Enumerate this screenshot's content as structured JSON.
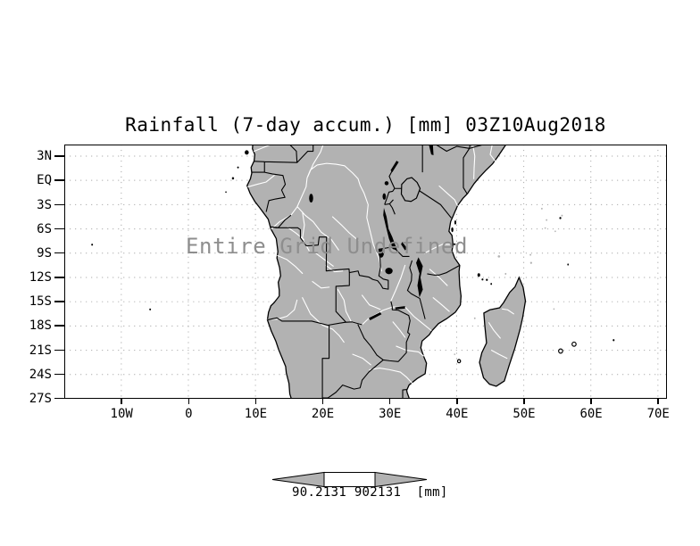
{
  "title": "Rainfall (7-day accum.) [mm] 03Z10Aug2018",
  "overlay_message": "Entire Grid Undefined",
  "y_axis": {
    "labels": [
      "3N",
      "EQ",
      "3S",
      "6S",
      "9S",
      "12S",
      "15S",
      "18S",
      "21S",
      "24S",
      "27S"
    ]
  },
  "x_axis": {
    "labels": [
      "10W",
      "0",
      "10E",
      "20E",
      "30E",
      "40E",
      "50E",
      "60E",
      "70E"
    ]
  },
  "colorbar": {
    "label": "90.2131 902131  [mm]",
    "min": "90.2131",
    "max": "902131",
    "unit": "[mm]"
  },
  "colors": {
    "background": "#ffffff",
    "land": "#b2b2b2",
    "gridline": "#aaaaaa",
    "frame": "#000000",
    "river": "#ffffff",
    "overlay_text": "#8e8e8e",
    "colorbar_arrow": "#b2b2b2",
    "colorbar_box": "#ffffff"
  },
  "chart_data": {
    "type": "heatmap",
    "title": "Rainfall (7-day accum.) [mm] 03Z10Aug2018",
    "variable": "Rainfall (7-day accum.)",
    "units": "mm",
    "valid_time": "03Z10Aug2018",
    "x_tick_labels": [
      "10W",
      "0",
      "10E",
      "20E",
      "30E",
      "40E",
      "50E",
      "60E",
      "70E"
    ],
    "y_tick_labels": [
      "3N",
      "EQ",
      "3S",
      "6S",
      "9S",
      "12S",
      "15S",
      "18S",
      "21S",
      "24S",
      "27S"
    ],
    "xlim_deg_lon": [
      -18.5,
      71.3
    ],
    "ylim_deg_lat": [
      -27,
      4.4
    ],
    "grid": true,
    "values": [],
    "status": "Entire Grid Undefined",
    "colorbar_labels": [
      "90.2131",
      "902131"
    ],
    "colorbar_units": "[mm]",
    "legend_position": "bottom-center"
  }
}
